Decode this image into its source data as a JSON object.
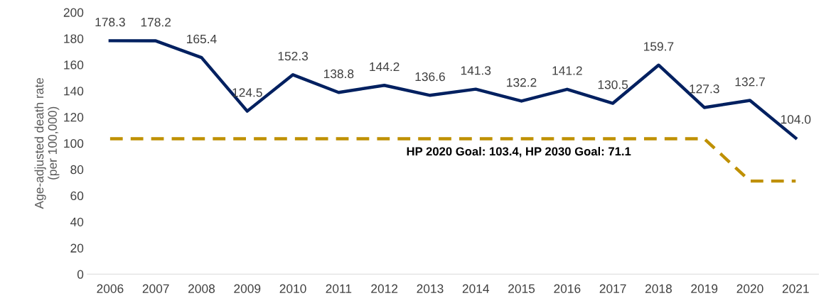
{
  "chart_data": {
    "type": "line",
    "ylabel": "Age-adjusted death rate\n(per 100,000)",
    "categories": [
      "2006",
      "2007",
      "2008",
      "2009",
      "2010",
      "2011",
      "2012",
      "2013",
      "2014",
      "2015",
      "2016",
      "2017",
      "2018",
      "2019",
      "2020",
      "2021"
    ],
    "series": [
      {
        "color": "#002060",
        "line_style": "solid",
        "values": [
          178.3,
          178.2,
          165.4,
          124.5,
          152.3,
          138.8,
          144.2,
          136.6,
          141.3,
          132.2,
          141.2,
          130.5,
          159.7,
          127.3,
          132.7,
          104.0
        ],
        "value_labels": [
          "178.3",
          "178.2",
          "165.4",
          "124.5",
          "152.3",
          "138.8",
          "144.2",
          "136.6",
          "141.3",
          "132.2",
          "141.2",
          "130.5",
          "159.7",
          "127.3",
          "132.7",
          "104.0"
        ]
      },
      {
        "color": "#bf9000",
        "line_style": "dashed",
        "values": [
          103.4,
          103.4,
          103.4,
          103.4,
          103.4,
          103.4,
          103.4,
          103.4,
          103.4,
          103.4,
          103.4,
          103.4,
          103.4,
          103.4,
          71.1,
          71.1
        ]
      }
    ],
    "ylim": [
      0,
      200
    ],
    "yticks": [
      0,
      20,
      40,
      60,
      80,
      100,
      120,
      140,
      160,
      180,
      200
    ],
    "grid": false,
    "legend": false,
    "marker": "none",
    "annotations": [
      "HP 2020 Goal: 103.4, HP 2030 Goal: 71.1"
    ]
  }
}
